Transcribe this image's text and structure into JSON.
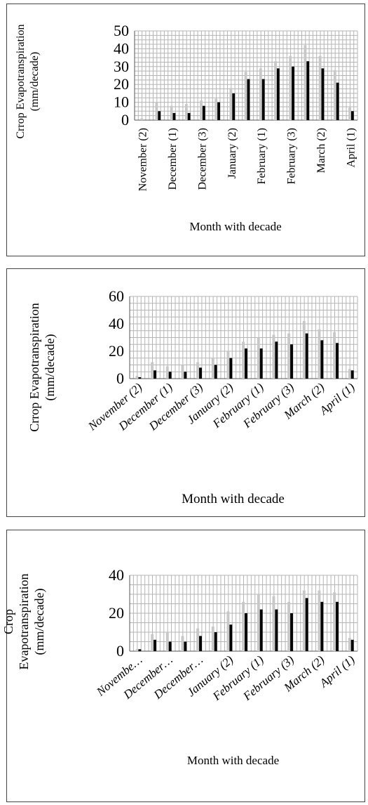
{
  "chart_data": [
    {
      "type": "bar",
      "xlabel": "Month with decade",
      "ylabel": [
        "Crrop Evapotranspiration",
        "(mm/decade)"
      ],
      "ylim": [
        0,
        50
      ],
      "yticks": [
        "0",
        "10",
        "20",
        "30",
        "40",
        "50"
      ],
      "grid": true,
      "tick_labels": [
        "November (2)",
        "December (1)",
        "December (3)",
        "January (2)",
        "February (1)",
        "February (3)",
        "March (2)",
        "April (1)"
      ],
      "label_rotation": -90,
      "series": [
        {
          "color": "#c8c8c8",
          "values": [
            1,
            10,
            8,
            9,
            11,
            12,
            18,
            27,
            29,
            33,
            36,
            42,
            36,
            28,
            7
          ]
        },
        {
          "color": "#000000",
          "values": [
            0,
            5,
            4,
            4,
            8,
            10,
            15,
            23,
            23,
            29,
            30,
            33,
            29,
            21,
            5
          ]
        }
      ]
    },
    {
      "type": "bar",
      "xlabel": "Month with decade",
      "ylabel": [
        "Crrop Evapotranspiration",
        "(mm/decade)"
      ],
      "ylim": [
        0,
        60
      ],
      "yticks": [
        "0",
        "20",
        "40",
        "60"
      ],
      "grid": true,
      "tick_labels": [
        "November (2)",
        "December (1)",
        "December (3)",
        "January (2)",
        "February (1)",
        "February (3)",
        "March (2)",
        "April (1)"
      ],
      "label_rotation": -40,
      "series": [
        {
          "color": "#c8c8c8",
          "values": [
            2,
            12,
            9,
            10,
            12,
            15,
            20,
            27,
            30,
            32,
            33,
            42,
            36,
            34,
            7
          ]
        },
        {
          "color": "#000000",
          "values": [
            1,
            6,
            5,
            5,
            8,
            10,
            15,
            22,
            22,
            27,
            25,
            33,
            28,
            26,
            6
          ]
        }
      ]
    },
    {
      "type": "bar",
      "xlabel": "Month with decade",
      "ylabel": [
        "Crop",
        "Evapotranspiration",
        "(mm/decade)"
      ],
      "ylim": [
        0,
        40
      ],
      "yticks": [
        "0",
        "20",
        "40"
      ],
      "grid": true,
      "tick_labels": [
        "Novembe…",
        "December…",
        "December…",
        "January (2)",
        "February (1)",
        "February (3)",
        "March (2)",
        "April (1)"
      ],
      "label_rotation": -40,
      "series": [
        {
          "color": "#c8c8c8",
          "values": [
            1,
            9,
            10,
            8,
            12,
            13,
            21,
            26,
            30,
            29,
            26,
            32,
            32,
            31,
            7
          ]
        },
        {
          "color": "#000000",
          "values": [
            1,
            6,
            5,
            5,
            8,
            10,
            14,
            20,
            22,
            22,
            20,
            28,
            26,
            26,
            6
          ]
        }
      ]
    }
  ]
}
